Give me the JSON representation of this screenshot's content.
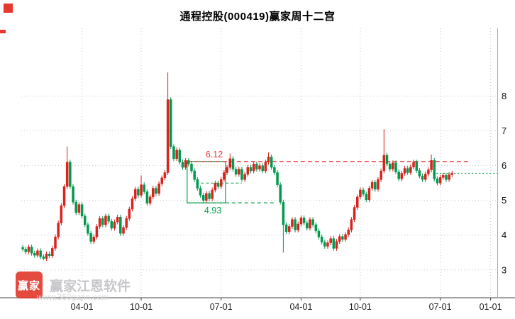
{
  "page": {
    "title": "通程控股(000419)赢家周十二宫",
    "watermark": {
      "logo_text": "赢家",
      "name": "赢家江恩软件",
      "url": "www.360gann.com"
    }
  },
  "chart_data": {
    "type": "candlestick",
    "title": "通程控股(000419)赢家周十二宫",
    "xlabel": "",
    "ylabel": "",
    "ylim": [
      2.2,
      9.95
    ],
    "yticks": [
      3,
      4,
      5,
      6,
      7,
      8
    ],
    "x_slots": 161,
    "xticks": [
      {
        "label": "04-01",
        "index": 20
      },
      {
        "label": "10-01",
        "index": 40
      },
      {
        "label": "07-01",
        "index": 67
      },
      {
        "label": "04-01",
        "index": 94
      },
      {
        "label": "10-01",
        "index": 114
      },
      {
        "label": "07-01",
        "index": 141
      },
      {
        "label": "01-01",
        "index": 158
      }
    ],
    "colors": {
      "up": "#d8231d",
      "down": "#009a4e",
      "grid": "#c9c9c9",
      "axis": "#444444",
      "tick_text": "#111111",
      "resistance": "#e23c3c",
      "support": "#0aa04e"
    },
    "first_open": 3.65,
    "wick": 0.07,
    "closes": [
      3.6,
      3.52,
      3.66,
      3.48,
      3.42,
      3.55,
      3.38,
      3.33,
      3.46,
      3.41,
      3.62,
      3.95,
      4.35,
      4.85,
      5.4,
      6.1,
      5.4,
      4.95,
      4.65,
      4.88,
      4.55,
      4.3,
      4.05,
      3.82,
      3.95,
      4.25,
      4.48,
      4.3,
      4.55,
      4.4,
      4.2,
      4.38,
      4.52,
      4.05,
      4.22,
      4.48,
      4.75,
      5.05,
      5.32,
      5.15,
      5.45,
      5.25,
      4.92,
      5.1,
      5.35,
      5.2,
      5.48,
      5.65,
      5.8,
      7.9,
      6.55,
      6.2,
      6.45,
      6.1,
      5.95,
      6.15,
      6.05,
      5.85,
      5.6,
      5.35,
      5.15,
      5.0,
      5.2,
      5.05,
      5.3,
      5.5,
      5.4,
      5.6,
      5.8,
      5.95,
      6.2,
      5.9,
      5.75,
      5.9,
      5.6,
      5.75,
      5.95,
      5.85,
      6.05,
      5.9,
      6.0,
      5.85,
      6.1,
      6.25,
      5.95,
      5.8,
      5.45,
      4.95,
      4.3,
      4.1,
      4.25,
      4.45,
      4.15,
      4.32,
      4.5,
      4.35,
      4.2,
      4.45,
      4.3,
      4.12,
      3.95,
      3.8,
      3.68,
      3.78,
      3.9,
      3.62,
      3.82,
      3.96,
      3.88,
      4.02,
      4.15,
      4.45,
      4.8,
      5.1,
      5.3,
      5.18,
      5.02,
      5.35,
      5.52,
      5.32,
      5.6,
      5.85,
      6.3,
      6.05,
      5.9,
      6.08,
      5.82,
      5.62,
      5.78,
      5.92,
      5.8,
      5.96,
      6.1,
      5.86,
      5.7,
      5.6,
      5.76,
      5.88,
      6.15,
      5.62,
      5.5,
      5.66,
      5.72,
      5.6,
      5.74,
      5.78
    ],
    "high_overrides": {
      "15": 6.55,
      "40": 5.72,
      "49": 8.68,
      "70": 6.35,
      "83": 6.38,
      "122": 7.05,
      "138": 6.32
    },
    "low_overrides": {
      "7": 3.28,
      "61": 4.93,
      "88": 3.5,
      "105": 3.55
    },
    "annotations": {
      "resistance_line": {
        "value": 6.12,
        "label": "6.12",
        "from": 56,
        "to": 151
      },
      "support_line": {
        "value": 4.93,
        "label": "4.93",
        "from": 56,
        "to": 85
      },
      "mid_line": {
        "value": 5.5,
        "from": 59,
        "to": 74
      },
      "box": {
        "top": 6.12,
        "bottom": 4.93,
        "from": 56,
        "to": 68
      },
      "current_line": {
        "value": 5.78,
        "from": 139,
        "to": 161
      }
    }
  }
}
